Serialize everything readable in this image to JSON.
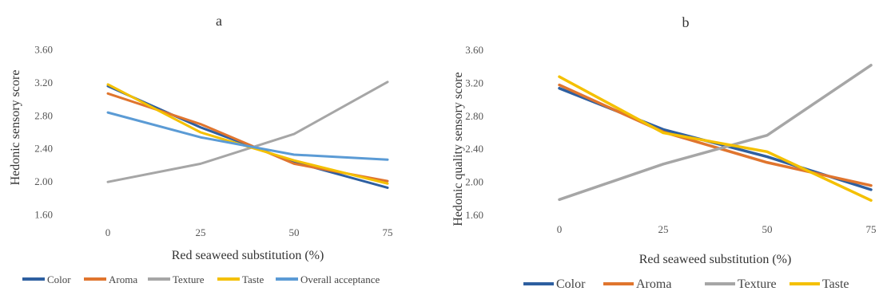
{
  "colors": {
    "Color": "#2e5fa0",
    "Aroma": "#e0752e",
    "Texture": "#a6a6a6",
    "Taste": "#f4c000",
    "Overall acceptance": "#5b9bd5"
  },
  "chart_data": [
    {
      "type": "line",
      "title": "a",
      "xlabel": "Red seaweed substitution (%)",
      "ylabel": "Hedonic sensory score",
      "categories": [
        "0",
        "25",
        "50",
        "75"
      ],
      "yticks": [
        "1.60",
        "2.00",
        "2.40",
        "2.80",
        "3.20",
        "3.60"
      ],
      "ylim": [
        1.5,
        3.7
      ],
      "grid": false,
      "legend_position": "bottom",
      "series": [
        {
          "name": "Color",
          "values": [
            3.16,
            2.66,
            2.24,
            1.93
          ]
        },
        {
          "name": "Aroma",
          "values": [
            3.07,
            2.7,
            2.22,
            2.01
          ]
        },
        {
          "name": "Texture",
          "values": [
            2.0,
            2.22,
            2.58,
            3.21
          ]
        },
        {
          "name": "Taste",
          "values": [
            3.18,
            2.6,
            2.26,
            1.98
          ]
        },
        {
          "name": "Overall acceptance",
          "values": [
            2.84,
            2.54,
            2.33,
            2.27
          ]
        }
      ]
    },
    {
      "type": "line",
      "title": "b",
      "xlabel": "Red seaweed substitution (%)",
      "ylabel": "Hedonic quality sensory score",
      "categories": [
        "0",
        "25",
        "50",
        "75"
      ],
      "yticks": [
        "1.60",
        "2.00",
        "2.40",
        "2.80",
        "3.20",
        "3.60"
      ],
      "ylim": [
        1.58,
        3.65
      ],
      "grid": false,
      "legend_position": "bottom",
      "series": [
        {
          "name": "Color",
          "values": [
            3.14,
            2.64,
            2.31,
            1.91
          ]
        },
        {
          "name": "Aroma",
          "values": [
            3.18,
            2.61,
            2.24,
            1.96
          ]
        },
        {
          "name": "Texture",
          "values": [
            1.79,
            2.22,
            2.57,
            3.42
          ]
        },
        {
          "name": "Taste",
          "values": [
            3.28,
            2.6,
            2.37,
            1.78
          ]
        }
      ]
    }
  ]
}
